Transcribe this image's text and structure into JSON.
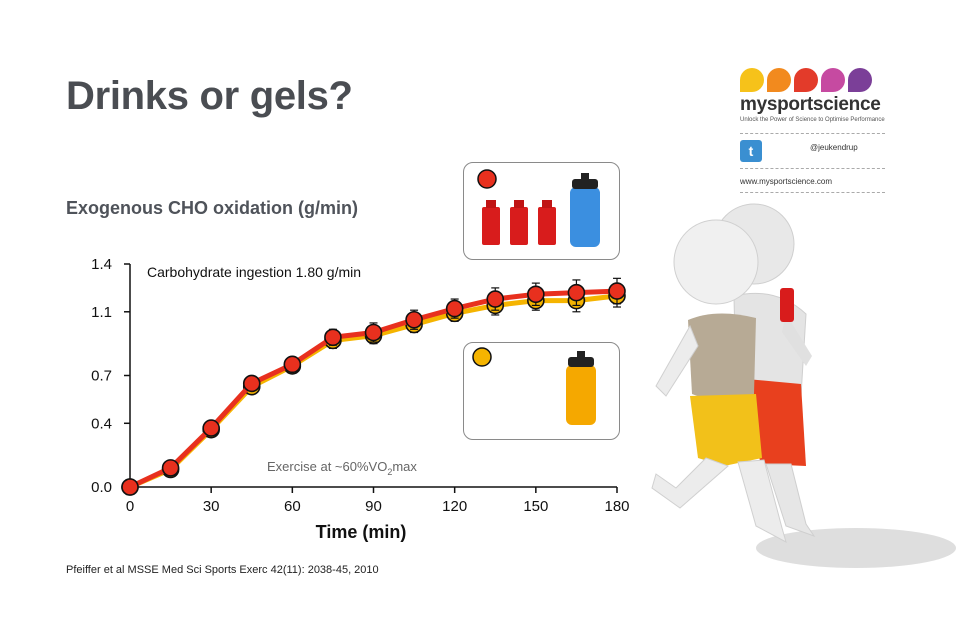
{
  "slide": {
    "title": "Drinks or gels?",
    "citation_bold": "Pfeiffer et al MSSE",
    "citation_rest": " Med Sci Sports Exerc 42(11): 2038-45, 2010"
  },
  "brand": {
    "name": "mysportscience",
    "tagline": "Unlock the Power of Science to Optimise Performance",
    "twitter": "@jeukendrup",
    "website": "www.mysportscience.com",
    "petal_colors": [
      "#f6c21a",
      "#f28a1e",
      "#e33b2a",
      "#c64aa1",
      "#7b3f98"
    ],
    "twitter_color": "#3a8fd1"
  },
  "chart_data": {
    "type": "line",
    "title": "Exogenous CHO oxidation (g/min)",
    "xlabel": "Time (min)",
    "ylabel": "",
    "xlim": [
      0,
      180
    ],
    "ylim": [
      0.0,
      1.4
    ],
    "xticks": [
      0,
      30,
      60,
      90,
      120,
      150,
      180
    ],
    "yticks": [
      0.0,
      0.4,
      0.7,
      1.1,
      1.4
    ],
    "ytick_labels": [
      "0.0",
      "0.4",
      "0.7",
      "1.1",
      "1.4"
    ],
    "grid": false,
    "annotations": [
      "Carbohydrate ingestion 1.80 g/min",
      "Exercise at ~60%VO",
      "2",
      "max"
    ],
    "x": [
      0,
      15,
      30,
      45,
      60,
      75,
      90,
      105,
      120,
      135,
      150,
      165,
      180
    ],
    "series": [
      {
        "name": "",
        "color": "#f5b400",
        "values": [
          0.0,
          0.11,
          0.36,
          0.63,
          0.76,
          0.92,
          0.95,
          1.02,
          1.09,
          1.14,
          1.17,
          1.17,
          1.2
        ],
        "errors": [
          0.01,
          0.03,
          0.04,
          0.04,
          0.04,
          0.05,
          0.05,
          0.05,
          0.05,
          0.06,
          0.06,
          0.07,
          0.07
        ]
      },
      {
        "name": "",
        "color": "#e8301e",
        "values": [
          0.0,
          0.12,
          0.37,
          0.65,
          0.77,
          0.94,
          0.97,
          1.05,
          1.12,
          1.18,
          1.21,
          1.22,
          1.23
        ],
        "errors": [
          0.01,
          0.03,
          0.04,
          0.04,
          0.04,
          0.05,
          0.06,
          0.06,
          0.06,
          0.07,
          0.07,
          0.08,
          0.08
        ]
      }
    ]
  }
}
